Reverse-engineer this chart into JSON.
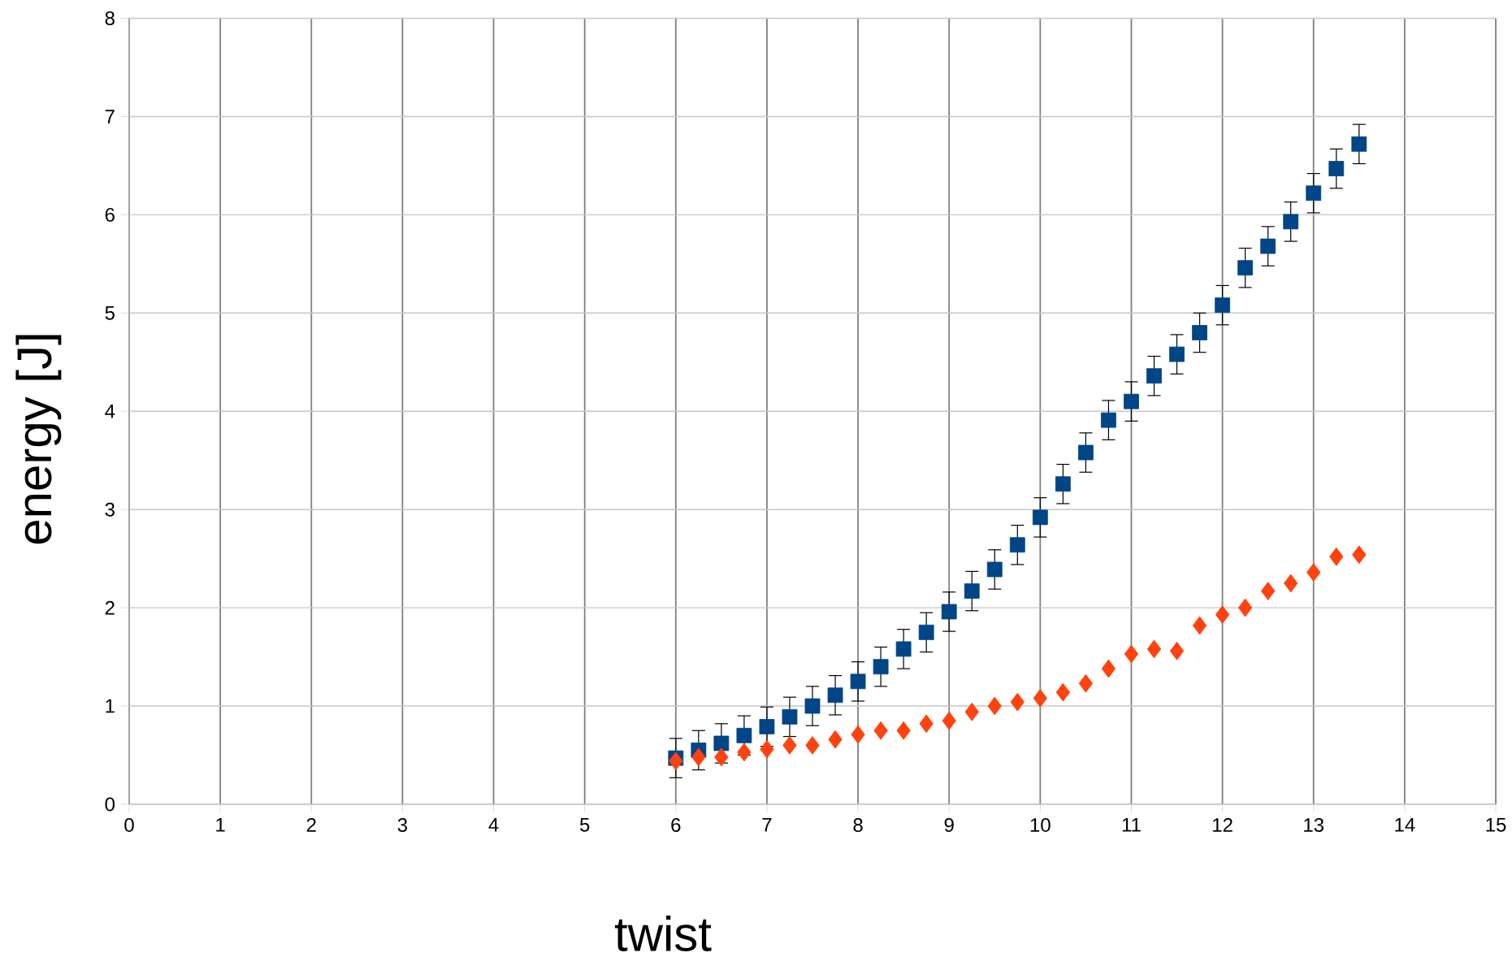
{
  "chart_data": {
    "type": "scatter",
    "xlabel": "twist",
    "ylabel": "energy [J]",
    "xlim": [
      0,
      15
    ],
    "ylim": [
      0,
      8
    ],
    "xticks": [
      0,
      1,
      2,
      3,
      4,
      5,
      6,
      7,
      8,
      9,
      10,
      11,
      12,
      13,
      14,
      15
    ],
    "yticks": [
      0,
      1,
      2,
      3,
      4,
      5,
      6,
      7,
      8
    ],
    "grid": true,
    "series": [
      {
        "color": "#004586",
        "marker": "square",
        "x": [
          6,
          6.25,
          6.5,
          6.75,
          7,
          7.25,
          7.5,
          7.75,
          8,
          8.25,
          8.5,
          8.75,
          9,
          9.25,
          9.5,
          9.75,
          10,
          10.25,
          10.5,
          10.75,
          11,
          11.25,
          11.5,
          11.75,
          12,
          12.25,
          12.5,
          12.75,
          13,
          13.25,
          13.5
        ],
        "values": [
          0.47,
          0.55,
          0.62,
          0.7,
          0.79,
          0.89,
          1.0,
          1.11,
          1.25,
          1.4,
          1.58,
          1.75,
          1.96,
          2.17,
          2.39,
          2.64,
          2.92,
          3.26,
          3.58,
          3.91,
          4.1,
          4.36,
          4.58,
          4.8,
          5.08,
          5.46,
          5.68,
          5.93,
          6.22,
          6.47,
          6.72
        ],
        "errors": [
          0.2,
          0.2,
          0.2,
          0.2,
          0.2,
          0.2,
          0.2,
          0.2,
          0.2,
          0.2,
          0.2,
          0.2,
          0.2,
          0.2,
          0.2,
          0.2,
          0.2,
          0.2,
          0.2,
          0.2,
          0.2,
          0.2,
          0.2,
          0.2,
          0.2,
          0.2,
          0.2,
          0.2,
          0.2,
          0.2,
          0.2
        ]
      },
      {
        "color": "#ff420e",
        "marker": "diamond",
        "x": [
          6,
          6.25,
          6.5,
          6.75,
          7,
          7.25,
          7.5,
          7.75,
          8,
          8.25,
          8.5,
          8.75,
          9,
          9.25,
          9.5,
          9.75,
          10,
          10.25,
          10.5,
          10.75,
          11,
          11.25,
          11.5,
          11.75,
          12,
          12.25,
          12.5,
          12.75,
          13,
          13.25,
          13.5
        ],
        "values": [
          0.44,
          0.48,
          0.48,
          0.53,
          0.56,
          0.6,
          0.6,
          0.66,
          0.71,
          0.75,
          0.75,
          0.82,
          0.85,
          0.94,
          1.0,
          1.04,
          1.08,
          1.14,
          1.23,
          1.38,
          1.53,
          1.58,
          1.56,
          1.82,
          1.93,
          2.0,
          2.17,
          2.25,
          2.36,
          2.52,
          2.54
        ]
      }
    ]
  }
}
